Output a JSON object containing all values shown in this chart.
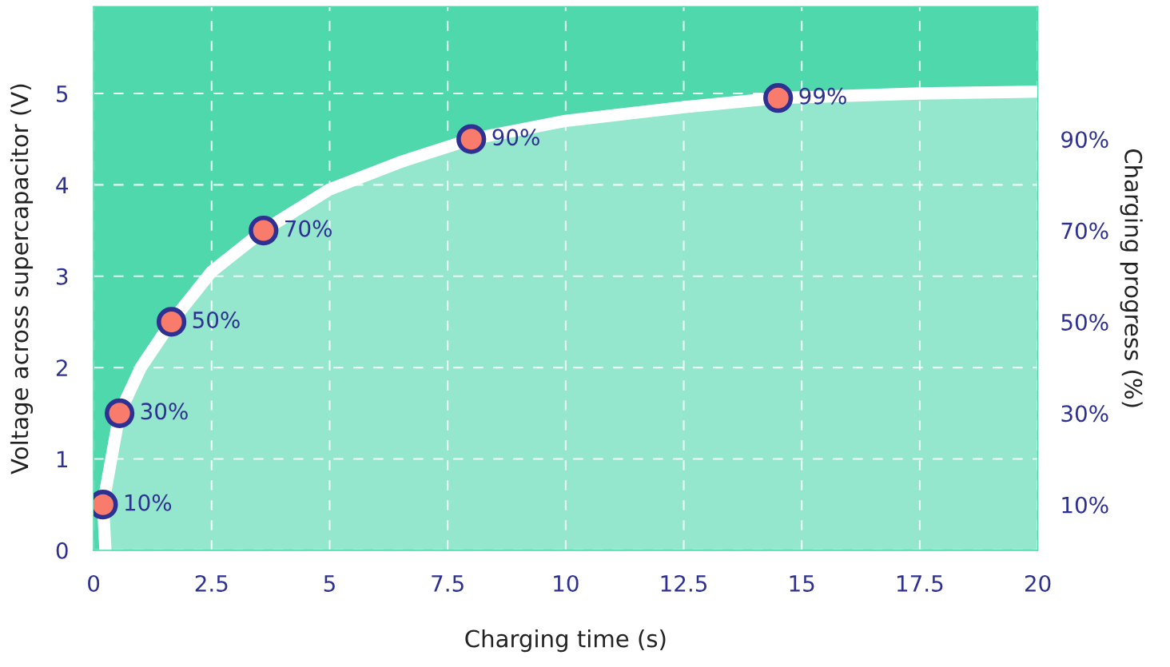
{
  "chart_data": {
    "type": "area",
    "xlabel": "Charging time (s)",
    "ylabel": "Voltage across supercapacitor (V)",
    "y2label": "Charging progress (%)",
    "xlim": [
      0,
      20
    ],
    "xticks": [
      0,
      {
        "value": 2.5,
        "label": "2.5"
      },
      5,
      {
        "value": 7.5,
        "label": "7.5"
      },
      10,
      {
        "value": 12.5,
        "label": "12.5"
      },
      15,
      {
        "value": 17.5,
        "label": "17.5"
      },
      20
    ],
    "ylim": [
      0,
      5.95
    ],
    "yticks": [
      0,
      1,
      2,
      3,
      4,
      5
    ],
    "y2lim": [
      0,
      119
    ],
    "y2ticks": [
      {
        "value": 10,
        "label": "10%"
      },
      {
        "value": 30,
        "label": "30%"
      },
      {
        "value": 50,
        "label": "50%"
      },
      {
        "value": 70,
        "label": "70%"
      },
      {
        "value": 90,
        "label": "90%"
      }
    ],
    "grid": true,
    "line_style": "solid",
    "bands": [
      {
        "axis": "y",
        "from": 0,
        "to": 5.95,
        "color": "#4ed8ab"
      }
    ],
    "series": [
      {
        "color": "#ffffff",
        "x": [
          0.25,
          0.2,
          0.55,
          1.0,
          1.65,
          2.5,
          3.6,
          5,
          6.5,
          8,
          10,
          12.5,
          14.5,
          17.5,
          20
        ],
        "values": [
          0,
          0.5,
          1.5,
          2.0,
          2.5,
          3.05,
          3.5,
          3.95,
          4.25,
          4.5,
          4.7,
          4.85,
          4.95,
          5.0,
          5.02
        ]
      },
      {
        "type": "scatter",
        "color": "#f97b6b",
        "marker": "circle",
        "x": [
          0.2,
          0.55,
          1.65,
          3.6,
          8.0,
          14.5
        ],
        "axis": "y2",
        "values": [
          10,
          30,
          50,
          70,
          90,
          99
        ],
        "value_labels": [
          "10%",
          "30%",
          "50%",
          "70%",
          "90%",
          "99%"
        ]
      }
    ]
  }
}
